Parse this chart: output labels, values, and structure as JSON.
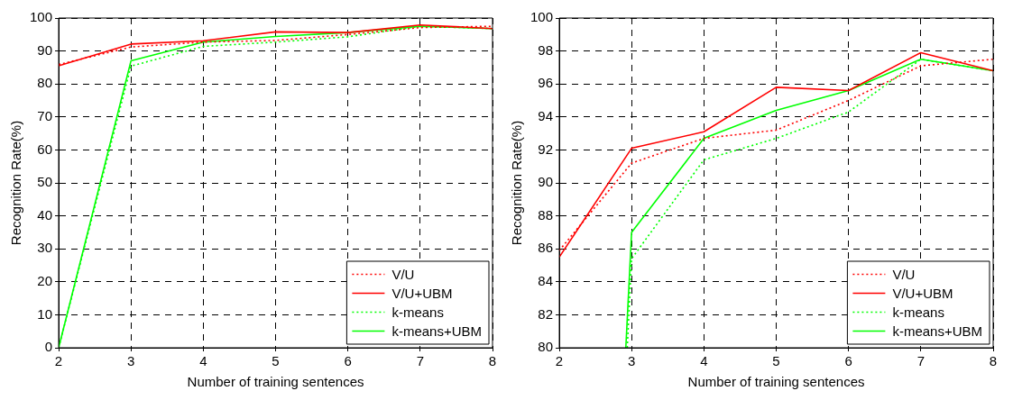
{
  "chart_data": [
    {
      "type": "line",
      "xlabel": "Number of training sentences",
      "ylabel": "Recognition Rate(%)",
      "x": [
        2,
        3,
        4,
        5,
        6,
        7,
        8
      ],
      "xlim": [
        2,
        8
      ],
      "xticks": [
        2,
        3,
        4,
        5,
        6,
        7,
        8
      ],
      "ylim": [
        0,
        100
      ],
      "yticks": [
        0,
        10,
        20,
        30,
        40,
        50,
        60,
        70,
        80,
        90,
        100
      ],
      "grid": true,
      "legend": "bottom right",
      "marker": "none",
      "series": [
        {
          "name": "V/U",
          "color": "#ff0000",
          "line_style": "dotted",
          "values": [
            85.9,
            91.2,
            92.7,
            93.2,
            95.0,
            97.1,
            97.5
          ]
        },
        {
          "name": "V/U+UBM",
          "color": "#ff0000",
          "line_style": "solid",
          "values": [
            85.5,
            92.1,
            93.1,
            95.8,
            95.6,
            97.9,
            96.8
          ]
        },
        {
          "name": "k-means",
          "color": "#00ff00",
          "line_style": "dotted",
          "values": [
            0,
            85.4,
            91.4,
            92.7,
            94.3,
            97.5,
            96.8
          ]
        },
        {
          "name": "k-means+UBM",
          "color": "#00ff00",
          "line_style": "solid",
          "values": [
            0,
            87.0,
            92.7,
            94.4,
            95.6,
            97.5,
            96.8
          ]
        }
      ]
    },
    {
      "type": "line",
      "xlabel": "Number of training sentences",
      "ylabel": "Recognition Rate(%)",
      "x": [
        2,
        3,
        4,
        5,
        6,
        7,
        8
      ],
      "xlim": [
        2,
        8
      ],
      "xticks": [
        2,
        3,
        4,
        5,
        6,
        7,
        8
      ],
      "ylim": [
        80,
        100
      ],
      "yticks": [
        80,
        82,
        84,
        86,
        88,
        90,
        92,
        94,
        96,
        98,
        100
      ],
      "grid": true,
      "legend": "bottom right",
      "marker": "none",
      "series": [
        {
          "name": "V/U",
          "color": "#ff0000",
          "line_style": "dotted",
          "values": [
            85.9,
            91.2,
            92.7,
            93.2,
            95.0,
            97.1,
            97.5
          ]
        },
        {
          "name": "V/U+UBM",
          "color": "#ff0000",
          "line_style": "solid",
          "values": [
            85.5,
            92.1,
            93.1,
            95.8,
            95.6,
            97.9,
            96.8
          ]
        },
        {
          "name": "k-means",
          "color": "#00ff00",
          "line_style": "dotted",
          "x": [
            2.94,
            3,
            4,
            5,
            6,
            7,
            8
          ],
          "values": [
            80,
            85.4,
            91.4,
            92.7,
            94.3,
            97.5,
            96.8
          ]
        },
        {
          "name": "k-means+UBM",
          "color": "#00ff00",
          "line_style": "solid",
          "x": [
            2.92,
            3,
            4,
            5,
            6,
            7,
            8
          ],
          "values": [
            80,
            87.0,
            92.7,
            94.4,
            95.6,
            97.5,
            96.8
          ]
        }
      ]
    }
  ]
}
